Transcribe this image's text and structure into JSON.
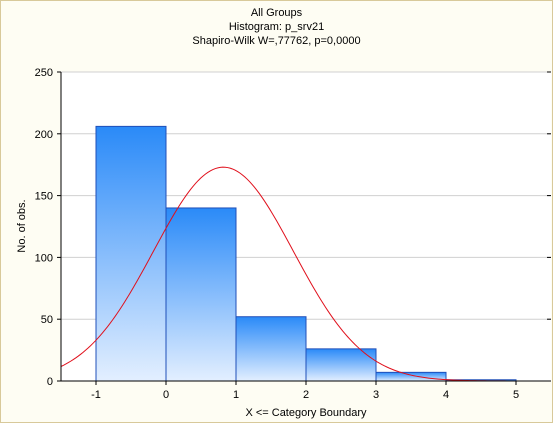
{
  "chart_data": {
    "type": "bar",
    "title": "All Groups",
    "subtitle": "Histogram: p_srv21",
    "subtitle2": "Shapiro-Wilk W=,77762, p=0,0000",
    "xlabel": "X <= Category Boundary",
    "ylabel": "No. of obs.",
    "xlim": [
      -1.5,
      5.5
    ],
    "ylim": [
      0,
      250
    ],
    "xticks": [
      "-1",
      "0",
      "1",
      "2",
      "3",
      "4",
      "5"
    ],
    "yticks": [
      "0",
      "50",
      "100",
      "150",
      "200",
      "250"
    ],
    "bins": [
      {
        "from": -1,
        "to": 0,
        "count": 206
      },
      {
        "from": 0,
        "to": 1,
        "count": 140
      },
      {
        "from": 1,
        "to": 2,
        "count": 52
      },
      {
        "from": 2,
        "to": 3,
        "count": 26
      },
      {
        "from": 3,
        "to": 4,
        "count": 7
      },
      {
        "from": 4,
        "to": 5,
        "count": 1
      }
    ],
    "normal_curve": {
      "mean": 0.82,
      "sd": 1.0,
      "peak": 173,
      "color": "#e0101c"
    },
    "grid": true,
    "colors": {
      "bar_top": "#2a8af8",
      "bar_bottom": "#e3efff",
      "bar_edge": "#1f4fb8",
      "grid": "#d0d0d0"
    }
  }
}
